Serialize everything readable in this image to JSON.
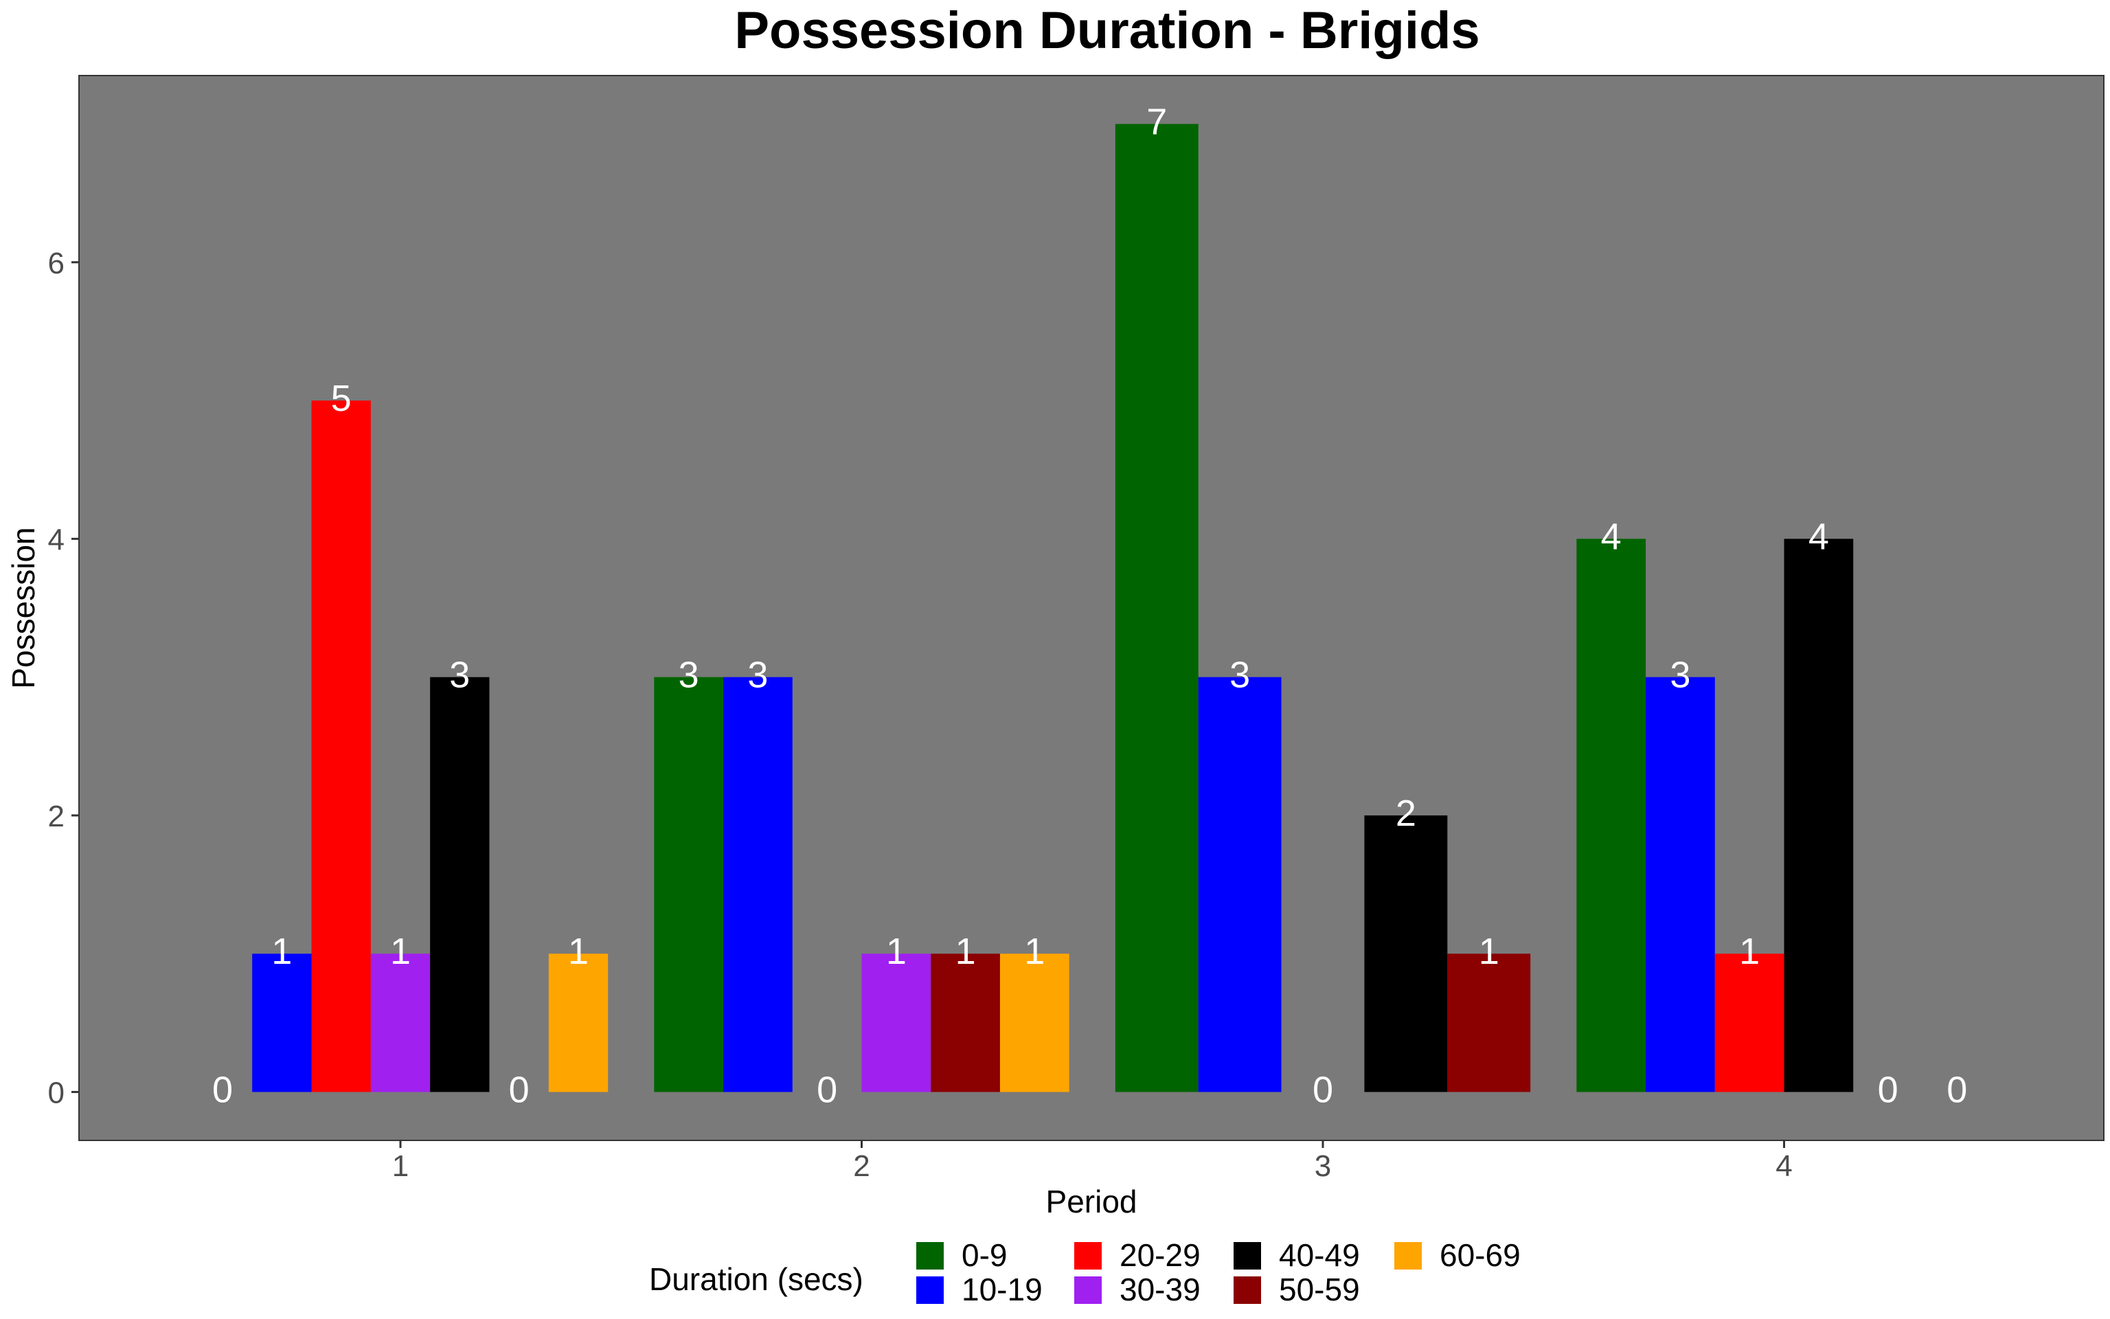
{
  "chart_data": {
    "type": "bar",
    "title": "Possession Duration - Brigids",
    "xlabel": "Period",
    "ylabel": "Possession",
    "categories": [
      "1",
      "2",
      "3",
      "4"
    ],
    "y_ticks": [
      "0",
      "2",
      "4",
      "6"
    ],
    "ylim": [
      -0.35,
      7.35
    ],
    "grid": false,
    "panel_background": "#7a7a7a",
    "legend_position": "bottom",
    "legend": {
      "title": "Duration (secs)",
      "entries": [
        {
          "label": "0-9",
          "color": "#006400"
        },
        {
          "label": "10-19",
          "color": "#0000ff"
        },
        {
          "label": "20-29",
          "color": "#ff0000"
        },
        {
          "label": "30-39",
          "color": "#a020f0"
        },
        {
          "label": "40-49",
          "color": "#000000"
        },
        {
          "label": "50-59",
          "color": "#8b0000"
        },
        {
          "label": "60-69",
          "color": "#ffa500"
        }
      ]
    },
    "groups": [
      {
        "period": "1",
        "bars": [
          {
            "series": null,
            "value": 0,
            "label": "0"
          },
          {
            "series": "10-19",
            "value": 1,
            "label": "1"
          },
          {
            "series": "20-29",
            "value": 5,
            "label": "5"
          },
          {
            "series": "30-39",
            "value": 1,
            "label": "1"
          },
          {
            "series": "40-49",
            "value": 3,
            "label": "3"
          },
          {
            "series": null,
            "value": 0,
            "label": "0"
          },
          {
            "series": "60-69",
            "value": 1,
            "label": "1"
          }
        ]
      },
      {
        "period": "2",
        "bars": [
          {
            "series": "0-9",
            "value": 3,
            "label": "3"
          },
          {
            "series": "10-19",
            "value": 3,
            "label": "3"
          },
          {
            "series": null,
            "value": 0,
            "label": "0"
          },
          {
            "series": "30-39",
            "value": 1,
            "label": "1"
          },
          {
            "series": "50-59",
            "value": 1,
            "label": "1"
          },
          {
            "series": "60-69",
            "value": 1,
            "label": "1"
          }
        ]
      },
      {
        "period": "3",
        "bars": [
          {
            "series": "0-9",
            "value": 7,
            "label": "7"
          },
          {
            "series": "10-19",
            "value": 3,
            "label": "3"
          },
          {
            "series": null,
            "value": 0,
            "label": "0"
          },
          {
            "series": "40-49",
            "value": 2,
            "label": "2"
          },
          {
            "series": "50-59",
            "value": 1,
            "label": "1"
          }
        ]
      },
      {
        "period": "4",
        "bars": [
          {
            "series": "0-9",
            "value": 4,
            "label": "4"
          },
          {
            "series": "10-19",
            "value": 3,
            "label": "3"
          },
          {
            "series": "20-29",
            "value": 1,
            "label": "1"
          },
          {
            "series": "40-49",
            "value": 4,
            "label": "4"
          },
          {
            "series": null,
            "value": 0,
            "label": "0"
          },
          {
            "series": null,
            "value": 0,
            "label": "0"
          }
        ]
      }
    ]
  }
}
